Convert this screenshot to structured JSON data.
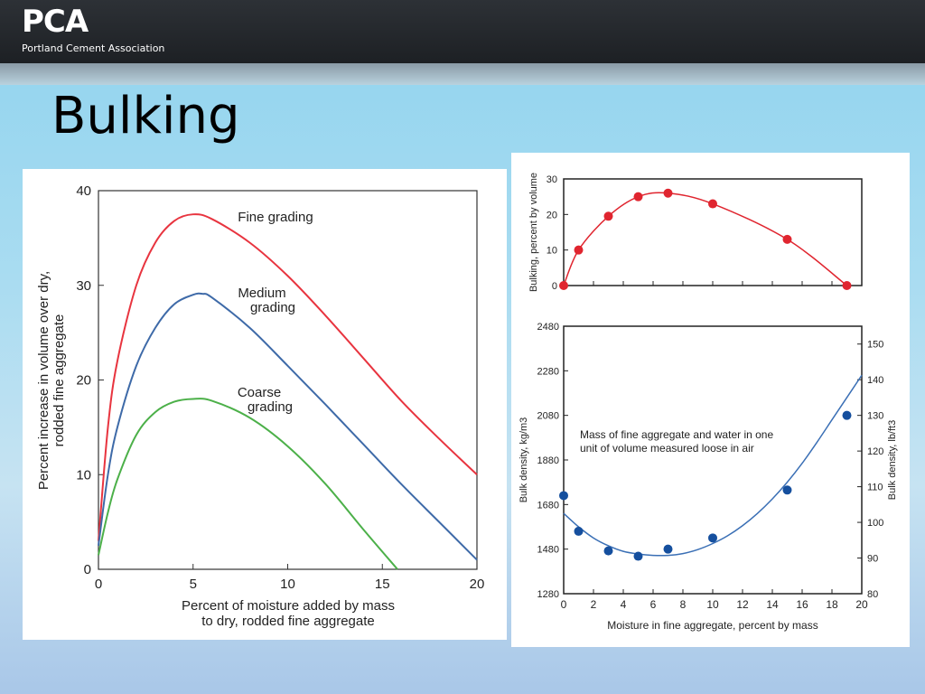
{
  "header": {
    "logo_mark": "PCA",
    "logo_text": "Portland Cement Association"
  },
  "slide": {
    "title": "Bulking"
  },
  "colors": {
    "fine": "#e8343f",
    "medium": "#3e6aa8",
    "coarse": "#4cb049",
    "top_series": "#e0252f",
    "density": "#154f9e"
  },
  "chart_data": [
    {
      "type": "line",
      "xlabel": "Percent of moisture added by mass\nto dry, rodded fine aggregate",
      "ylabel": "Percent increase in volume over dry,\nrodded fine aggregate",
      "xlim": [
        0,
        20
      ],
      "ylim": [
        0,
        40
      ],
      "xticks": [
        0,
        5,
        10,
        15,
        20
      ],
      "yticks": [
        0,
        10,
        20,
        30,
        40
      ],
      "series": [
        {
          "name": "Fine grading",
          "color": "#e8343f",
          "x": [
            0,
            0.5,
            1,
            2,
            3,
            4,
            5,
            6,
            8,
            10,
            12,
            14,
            16,
            18,
            20
          ],
          "y": [
            3,
            15,
            22,
            30,
            34.5,
            36.8,
            37.5,
            37,
            34.5,
            31,
            26.8,
            22.3,
            17.8,
            13.8,
            10
          ]
        },
        {
          "name": "Medium\ngrading",
          "color": "#3e6aa8",
          "x": [
            0,
            0.5,
            1,
            2,
            3,
            4,
            5,
            5.5,
            6,
            8,
            10,
            12,
            14,
            16,
            18,
            20
          ],
          "y": [
            2.5,
            10,
            15,
            21.5,
            25.5,
            28,
            29,
            29.1,
            28.7,
            25.5,
            21.5,
            17.4,
            13.2,
            9,
            5,
            1
          ]
        },
        {
          "name": "Coarse\ngrading",
          "color": "#4cb049",
          "x": [
            0,
            0.5,
            1,
            2,
            3,
            4,
            5,
            6,
            8,
            10,
            12,
            14,
            15.8
          ],
          "y": [
            1.5,
            6,
            9.5,
            14.2,
            16.6,
            17.7,
            18,
            17.8,
            16,
            13,
            9,
            4.2,
            0
          ]
        }
      ]
    },
    {
      "type": "line",
      "ylabel": "Bulking, percent by volume",
      "xlim": [
        0,
        20
      ],
      "ylim": [
        0,
        30
      ],
      "yticks": [
        0,
        10,
        20,
        30
      ],
      "series": [
        {
          "color": "#e0252f",
          "x": [
            0,
            1,
            3,
            5,
            7,
            10,
            15,
            19
          ],
          "y": [
            0,
            10,
            19.5,
            25,
            26,
            23,
            13,
            0
          ]
        }
      ]
    },
    {
      "type": "scatter",
      "annotation": "Mass of fine aggregate and water in one\nunit of volume measured loose in air",
      "xlabel": "Moisture in fine aggregate, percent by mass",
      "ylabel": "Bulk density, kg/m3",
      "y2label": "Bulk density, lb/ft3",
      "xlim": [
        0,
        20
      ],
      "ylim": [
        1280,
        2480
      ],
      "y2lim": [
        80,
        155
      ],
      "xticks": [
        0,
        2,
        4,
        6,
        8,
        10,
        12,
        14,
        16,
        18,
        20
      ],
      "yticks": [
        1280,
        1480,
        1680,
        1880,
        2080,
        2280,
        2480
      ],
      "y2ticks": [
        80,
        90,
        100,
        110,
        120,
        130,
        140,
        150
      ],
      "points": {
        "x": [
          0,
          1,
          3,
          5,
          7,
          10,
          15,
          19
        ],
        "y": [
          1720,
          1560,
          1472,
          1448,
          1480,
          1530,
          1745,
          2080
        ]
      },
      "curve": {
        "x": [
          0,
          1,
          2,
          3,
          4,
          5,
          6,
          7,
          8,
          9,
          10,
          11,
          12,
          13,
          14,
          15,
          16,
          17,
          18,
          19,
          20
        ],
        "y": [
          1640,
          1580,
          1530,
          1495,
          1470,
          1458,
          1452,
          1452,
          1460,
          1478,
          1505,
          1540,
          1585,
          1640,
          1705,
          1780,
          1865,
          1960,
          2060,
          2160,
          2260
        ]
      }
    }
  ]
}
